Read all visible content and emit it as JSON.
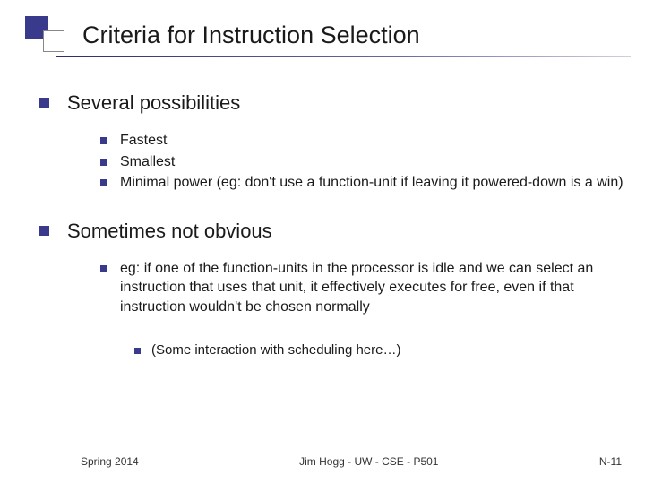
{
  "title": "Criteria for Instruction Selection",
  "sections": [
    {
      "heading": "Several possibilities",
      "items": [
        "Fastest",
        "Smallest",
        "Minimal power (eg: don't use a function-unit if leaving it powered-down is a win)"
      ]
    },
    {
      "heading": "Sometimes not obvious",
      "items": [
        "eg: if one of the function-units in the processor is idle and we can select an instruction that uses that unit, it effectively executes for free, even if that instruction wouldn't be chosen normally"
      ],
      "subitems": [
        "(Some interaction with scheduling here…)"
      ]
    }
  ],
  "footer": {
    "left": "Spring 2014",
    "center": "Jim Hogg - UW - CSE - P501",
    "right": "N-11"
  },
  "colors": {
    "bullet": "#3a3a8c",
    "text": "#1a1a1a",
    "background": "#ffffff"
  }
}
